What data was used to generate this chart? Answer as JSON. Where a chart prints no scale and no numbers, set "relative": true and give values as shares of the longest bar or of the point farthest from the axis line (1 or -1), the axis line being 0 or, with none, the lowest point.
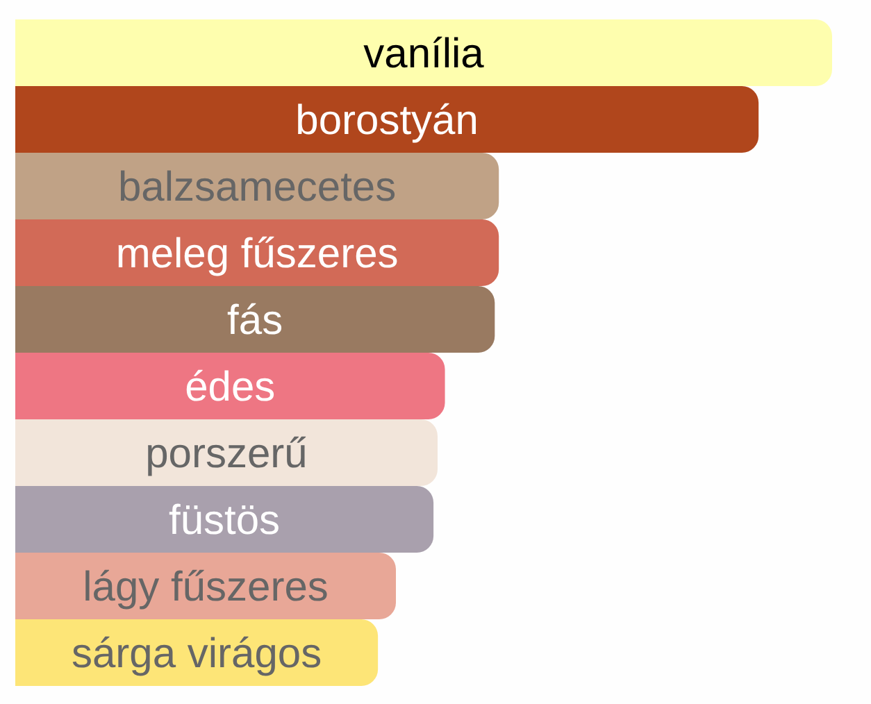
{
  "chart_data": {
    "type": "bar",
    "orientation": "horizontal",
    "relative": true,
    "categories": [
      "vanília",
      "borostyán",
      "balzsamecetes",
      "meleg fűszeres",
      "fás",
      "édes",
      "porszerű",
      "füstös",
      "lágy fűszeres",
      "sárga virágos"
    ],
    "values": [
      1,
      0.91,
      0.592,
      0.592,
      0.587,
      0.526,
      0.517,
      0.512,
      0.466,
      0.444
    ],
    "colors": [
      "#fefeae",
      "#b0461c",
      "#c0a286",
      "#d26a57",
      "#997a61",
      "#ee7683",
      "#f2e5da",
      "#a9a0ad",
      "#e8a797",
      "#fde577"
    ]
  }
}
